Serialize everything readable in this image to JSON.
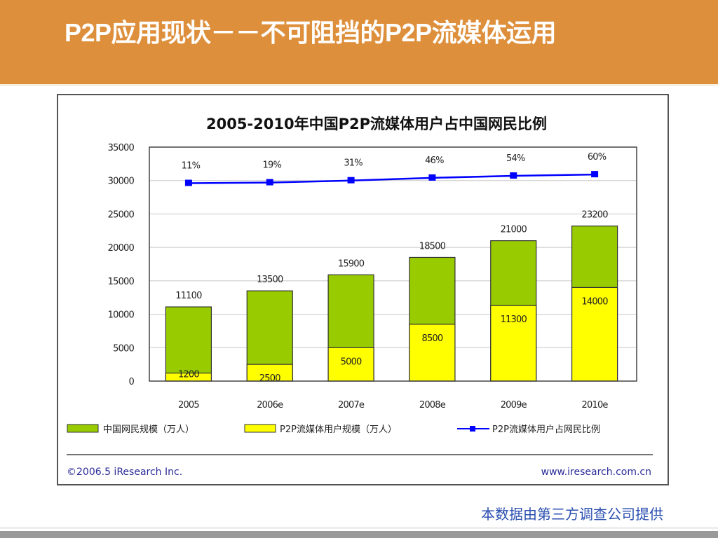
{
  "header": {
    "title": "P2P应用现状－－不可阻挡的P2P流媒体运用"
  },
  "colors": {
    "header_bg": "#de8f3b",
    "netizen_bar": "#99cc00",
    "p2p_bar": "#ffff00",
    "ratio_line": "#0000ff",
    "note_text": "#2b4fb0"
  },
  "chart_data": {
    "type": "bar",
    "title": "2005-2010年中国P2P流媒体用户占中国网民比例",
    "xlabel": "",
    "ylabel": "",
    "categories": [
      "2005",
      "2006e",
      "2007e",
      "2008e",
      "2009e",
      "2010e"
    ],
    "ylim": [
      0,
      35000
    ],
    "yticks": [
      "0",
      "5000",
      "10000",
      "15000",
      "20000",
      "25000",
      "30000",
      "35000"
    ],
    "grid": true,
    "series": [
      {
        "name": "中国网民规模（万人）",
        "kind": "bar",
        "color": "#99cc00",
        "values": [
          11100,
          13500,
          15900,
          18500,
          21000,
          23200
        ]
      },
      {
        "name": "P2P流媒体用户规模（万人）",
        "kind": "bar",
        "color": "#ffff00",
        "values": [
          1200,
          2500,
          5000,
          8500,
          11300,
          14000
        ]
      },
      {
        "name": "P2P流媒体用户占网民比例",
        "kind": "line",
        "color": "#0000ff",
        "values": [
          11,
          19,
          31,
          46,
          54,
          60
        ],
        "labels": [
          "11%",
          "19%",
          "31%",
          "46%",
          "54%",
          "60%"
        ],
        "plotted_y": [
          29600,
          29700,
          30000,
          30400,
          30700,
          30900
        ]
      }
    ],
    "legend": {
      "placement": "bottom",
      "items": [
        "中国网民规模（万人）",
        "P2P流媒体用户规模（万人）",
        "P2P流媒体用户占网民比例"
      ]
    },
    "footer_left": "©2006.5 iResearch Inc.",
    "footer_right": "www.iresearch.com.cn"
  },
  "note": "本数据由第三方调查公司提供"
}
